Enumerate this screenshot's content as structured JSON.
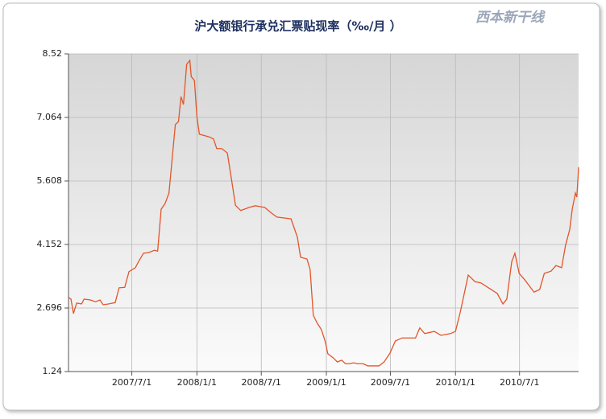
{
  "chart_data": {
    "type": "line",
    "title": "沪大额银行承兑汇票贴现率（‰/月 ）",
    "logo": "西本新干线",
    "x": [
      "2007-01-03",
      "2007-01-10",
      "2007-01-17",
      "2007-01-26",
      "2007-02-09",
      "2007-02-16",
      "2007-03-06",
      "2007-03-20",
      "2007-04-02",
      "2007-04-11",
      "2007-04-27",
      "2007-05-15",
      "2007-05-26",
      "2007-06-11",
      "2007-06-23",
      "2007-07-11",
      "2007-07-20",
      "2007-08-03",
      "2007-08-19",
      "2007-09-03",
      "2007-09-12",
      "2007-09-22",
      "2007-10-03",
      "2007-10-14",
      "2007-11-01",
      "2007-11-10",
      "2007-11-17",
      "2007-11-24",
      "2007-12-03",
      "2007-12-12",
      "2007-12-16",
      "2007-12-25",
      "2008-01-01",
      "2008-01-08",
      "2008-02-04",
      "2008-02-17",
      "2008-02-26",
      "2008-03-11",
      "2008-03-27",
      "2008-04-05",
      "2008-04-19",
      "2008-05-04",
      "2008-05-27",
      "2008-06-14",
      "2008-07-11",
      "2008-07-30",
      "2008-08-14",
      "2008-09-23",
      "2008-10-11",
      "2008-10-20",
      "2008-11-07",
      "2008-11-16",
      "2008-11-25",
      "2008-12-06",
      "2008-12-18",
      "2008-12-29",
      "2009-01-05",
      "2009-01-21",
      "2009-02-01",
      "2009-02-13",
      "2009-02-24",
      "2009-03-07",
      "2009-03-19",
      "2009-03-30",
      "2009-04-15",
      "2009-04-28",
      "2009-05-30",
      "2009-06-13",
      "2009-06-29",
      "2009-07-15",
      "2009-08-03",
      "2009-09-10",
      "2009-09-22",
      "2009-10-06",
      "2009-11-02",
      "2009-11-21",
      "2009-12-18",
      "2010-01-01",
      "2010-01-15",
      "2010-02-06",
      "2010-02-25",
      "2010-03-14",
      "2010-04-04",
      "2010-04-29",
      "2010-05-15",
      "2010-05-26",
      "2010-06-09",
      "2010-06-18",
      "2010-06-30",
      "2010-07-16",
      "2010-08-11",
      "2010-08-27",
      "2010-09-09",
      "2010-09-28",
      "2010-10-12",
      "2010-10-28",
      "2010-11-08",
      "2010-11-20",
      "2010-11-27",
      "2010-12-06",
      "2010-12-10",
      "2010-12-15"
    ],
    "series": [
      {
        "name": "沪大额银行承兑汇票贴现率",
        "color": "#e2562a",
        "values": [
          2.94,
          2.9,
          2.57,
          2.81,
          2.79,
          2.9,
          2.88,
          2.84,
          2.88,
          2.77,
          2.79,
          2.82,
          3.16,
          3.17,
          3.53,
          3.62,
          3.76,
          3.95,
          3.97,
          4.02,
          4.0,
          4.96,
          5.09,
          5.33,
          6.9,
          6.97,
          7.54,
          7.36,
          8.28,
          8.37,
          8.0,
          7.91,
          7.08,
          6.68,
          6.62,
          6.57,
          6.35,
          6.35,
          6.25,
          5.79,
          5.05,
          4.93,
          5.0,
          5.04,
          5.0,
          4.87,
          4.78,
          4.74,
          4.32,
          3.86,
          3.82,
          3.58,
          2.53,
          2.35,
          2.2,
          1.92,
          1.65,
          1.55,
          1.46,
          1.5,
          1.42,
          1.42,
          1.44,
          1.42,
          1.42,
          1.37,
          1.37,
          1.46,
          1.65,
          1.94,
          2.01,
          2.01,
          2.24,
          2.11,
          2.16,
          2.07,
          2.11,
          2.16,
          2.62,
          3.45,
          3.3,
          3.27,
          3.16,
          3.03,
          2.79,
          2.9,
          3.76,
          3.95,
          3.49,
          3.34,
          3.06,
          3.12,
          3.49,
          3.54,
          3.67,
          3.62,
          4.13,
          4.5,
          4.96,
          5.33,
          5.24,
          5.92
        ]
      }
    ],
    "xlim": [
      "2007-01-03",
      "2010-12-15"
    ],
    "xticks": [
      {
        "value": "2007-07-01",
        "label": "2007/7/1"
      },
      {
        "value": "2008-01-01",
        "label": "2008/1/1"
      },
      {
        "value": "2008-07-01",
        "label": "2008/7/1"
      },
      {
        "value": "2009-01-01",
        "label": "2009/1/1"
      },
      {
        "value": "2009-07-01",
        "label": "2009/7/1"
      },
      {
        "value": "2010-01-01",
        "label": "2010/1/1"
      },
      {
        "value": "2010-07-01",
        "label": "2010/7/1"
      }
    ],
    "ylim": [
      1.24,
      8.52
    ],
    "yticks": [
      1.24,
      2.696,
      4.152,
      5.608,
      7.064,
      8.52
    ],
    "grid": true
  }
}
